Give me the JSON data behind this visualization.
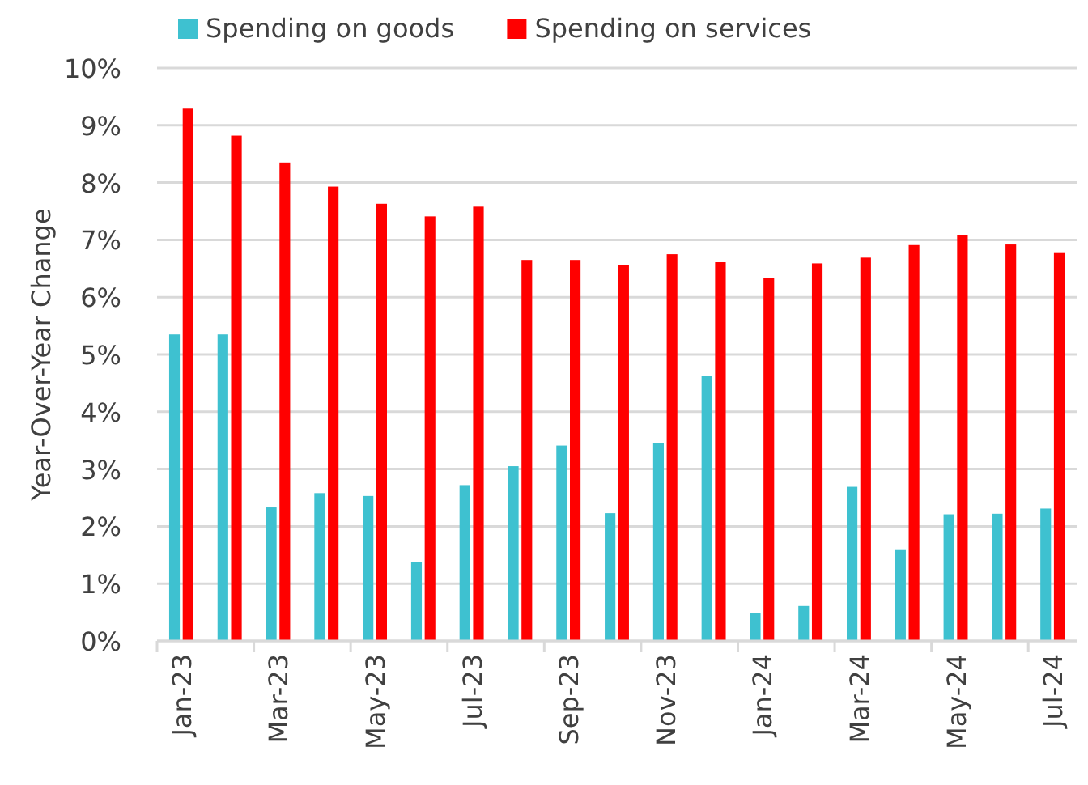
{
  "chart_data": {
    "type": "bar",
    "ylabel": "Year-Over-Year Change",
    "categories": [
      "Jan-23",
      null,
      "Mar-23",
      null,
      "May-23",
      null,
      "Jul-23",
      null,
      "Sep-23",
      null,
      "Nov-23",
      null,
      "Jan-24",
      null,
      "Mar-24",
      null,
      "May-24",
      null,
      "Jul-24"
    ],
    "series": [
      {
        "name": "Spending on goods",
        "color": "#3ec1d0",
        "values": [
          5.35,
          5.35,
          2.33,
          2.58,
          2.53,
          1.38,
          2.72,
          3.05,
          3.41,
          2.23,
          3.46,
          4.63,
          0.48,
          0.61,
          2.69,
          1.6,
          2.21,
          2.22,
          2.31
        ]
      },
      {
        "name": "Spending on services",
        "color": "#ff0000",
        "values": [
          9.29,
          8.82,
          8.35,
          7.93,
          7.63,
          7.41,
          7.58,
          6.65,
          6.65,
          6.56,
          6.75,
          6.61,
          6.34,
          6.59,
          6.69,
          6.91,
          7.08,
          6.92,
          6.77
        ]
      }
    ],
    "ylim": [
      0,
      10
    ],
    "yticks": [
      {
        "value": 0,
        "label": "0%"
      },
      {
        "value": 1,
        "label": "1%"
      },
      {
        "value": 2,
        "label": "2%"
      },
      {
        "value": 3,
        "label": "3%"
      },
      {
        "value": 4,
        "label": "4%"
      },
      {
        "value": 5,
        "label": "5%"
      },
      {
        "value": 6,
        "label": "6%"
      },
      {
        "value": 7,
        "label": "7%"
      },
      {
        "value": 8,
        "label": "8%"
      },
      {
        "value": 9,
        "label": "9%"
      },
      {
        "value": 10,
        "label": "10%"
      }
    ],
    "grid": "y",
    "legend": "top left"
  }
}
